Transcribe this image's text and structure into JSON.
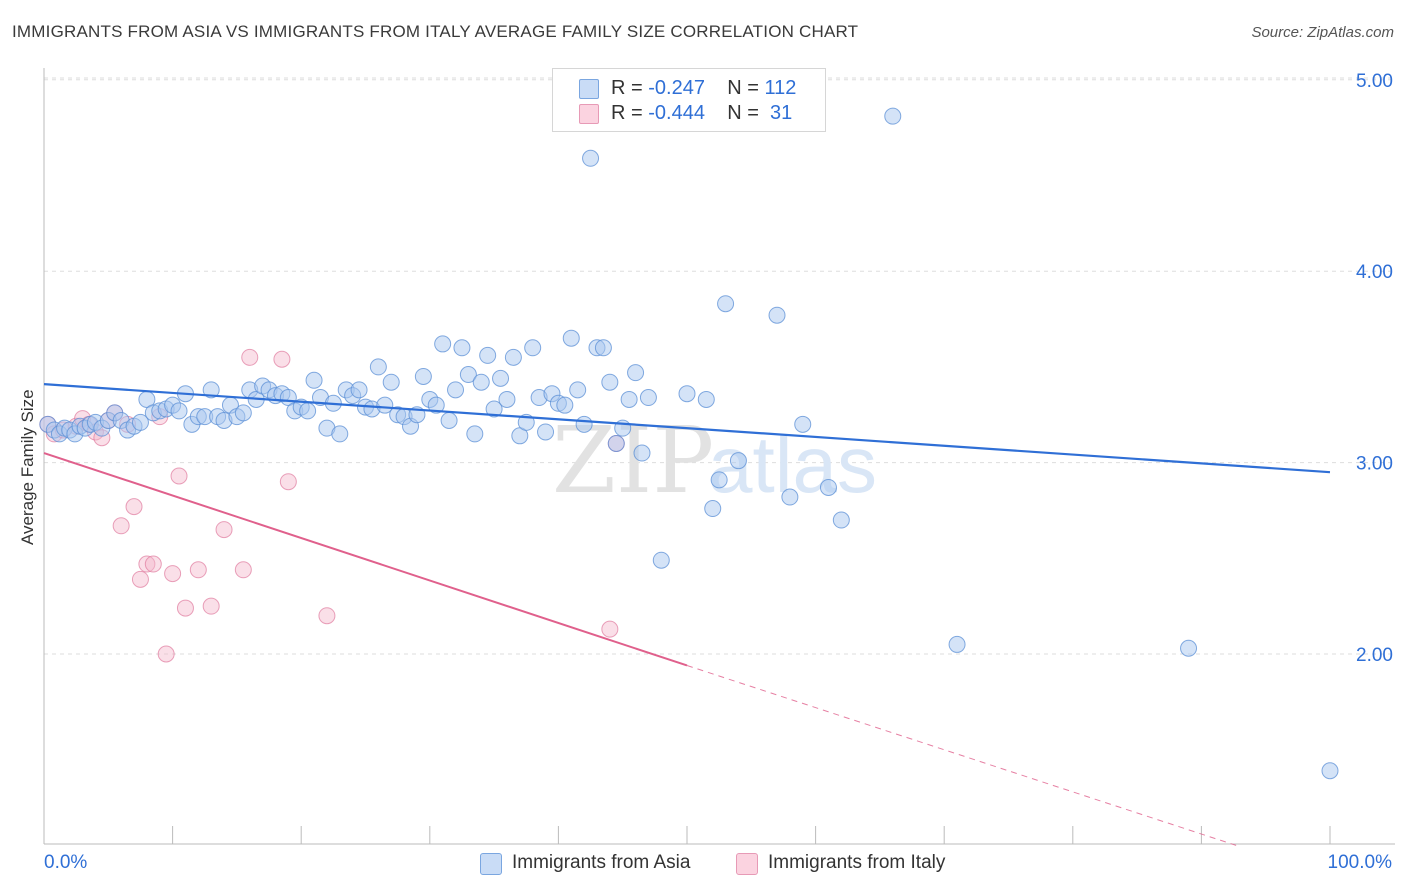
{
  "header": {
    "title": "IMMIGRANTS FROM ASIA VS IMMIGRANTS FROM ITALY AVERAGE FAMILY SIZE CORRELATION CHART",
    "source": "Source: ZipAtlas.com"
  },
  "legend": {
    "rows": [
      {
        "r_label": "R =",
        "r_value": "-0.247",
        "n_label": "N =",
        "n_value": "112",
        "color": "#a9c8f0"
      },
      {
        "r_label": "R =",
        "r_value": "-0.444",
        "n_label": "N =",
        "n_value": " 31",
        "color": "#f5b8cb"
      }
    ]
  },
  "bottom_legend": {
    "asia": "Immigrants from Asia",
    "italy": "Immigrants from Italy"
  },
  "watermark": {
    "zip": "ZIP",
    "atlas": "atlas"
  },
  "colors": {
    "asia_fill": "#a9c8f0",
    "asia_stroke": "#5b8fd6",
    "asia_line": "#2f6fd6",
    "italy_fill": "#f5b8cb",
    "italy_stroke": "#e07a9e",
    "italy_line": "#e0608c",
    "grid": "#dddddd",
    "tick_label": "#2f6fd6"
  },
  "chart_data": {
    "type": "scatter",
    "title": "IMMIGRANTS FROM ASIA VS IMMIGRANTS FROM ITALY AVERAGE FAMILY SIZE CORRELATION CHART",
    "xlabel": "",
    "ylabel": "Average Family Size",
    "x_tick_labels": [
      "0.0%",
      "100.0%"
    ],
    "y_tick_labels": [
      "5.00",
      "4.00",
      "3.00",
      "2.00"
    ],
    "y_ticks": [
      5.0,
      4.0,
      3.0,
      2.0
    ],
    "xlim": [
      0,
      105
    ],
    "ylim": [
      1.1,
      5.1
    ],
    "grid": true,
    "legend_position": "top-center",
    "series": [
      {
        "name": "Immigrants from Asia",
        "r": -0.247,
        "n": 112,
        "trend": {
          "x": [
            0,
            100
          ],
          "y": [
            3.41,
            2.95
          ]
        },
        "points": [
          [
            0.3,
            3.2
          ],
          [
            0.8,
            3.17
          ],
          [
            1.2,
            3.15
          ],
          [
            1.6,
            3.18
          ],
          [
            2.0,
            3.17
          ],
          [
            2.4,
            3.15
          ],
          [
            2.8,
            3.19
          ],
          [
            3.2,
            3.18
          ],
          [
            3.6,
            3.2
          ],
          [
            4.0,
            3.21
          ],
          [
            4.5,
            3.18
          ],
          [
            5.0,
            3.22
          ],
          [
            5.5,
            3.26
          ],
          [
            6.0,
            3.22
          ],
          [
            6.5,
            3.17
          ],
          [
            7.0,
            3.19
          ],
          [
            7.5,
            3.21
          ],
          [
            8.0,
            3.33
          ],
          [
            8.5,
            3.26
          ],
          [
            9.0,
            3.27
          ],
          [
            9.5,
            3.28
          ],
          [
            10.0,
            3.3
          ],
          [
            10.5,
            3.27
          ],
          [
            11.0,
            3.36
          ],
          [
            11.5,
            3.2
          ],
          [
            12.0,
            3.24
          ],
          [
            12.5,
            3.24
          ],
          [
            13.0,
            3.38
          ],
          [
            13.5,
            3.24
          ],
          [
            14.0,
            3.22
          ],
          [
            14.5,
            3.3
          ],
          [
            15.0,
            3.24
          ],
          [
            15.5,
            3.26
          ],
          [
            16.0,
            3.38
          ],
          [
            16.5,
            3.33
          ],
          [
            17.0,
            3.4
          ],
          [
            17.5,
            3.38
          ],
          [
            18.0,
            3.35
          ],
          [
            18.5,
            3.36
          ],
          [
            19.0,
            3.34
          ],
          [
            19.5,
            3.27
          ],
          [
            20.0,
            3.29
          ],
          [
            20.5,
            3.27
          ],
          [
            21.0,
            3.43
          ],
          [
            21.5,
            3.34
          ],
          [
            22.0,
            3.18
          ],
          [
            22.5,
            3.31
          ],
          [
            23.0,
            3.15
          ],
          [
            23.5,
            3.38
          ],
          [
            24.0,
            3.35
          ],
          [
            24.5,
            3.38
          ],
          [
            25.0,
            3.29
          ],
          [
            25.5,
            3.28
          ],
          [
            26.0,
            3.5
          ],
          [
            26.5,
            3.3
          ],
          [
            27.0,
            3.42
          ],
          [
            27.5,
            3.25
          ],
          [
            28.0,
            3.24
          ],
          [
            28.5,
            3.19
          ],
          [
            29.0,
            3.25
          ],
          [
            29.5,
            3.45
          ],
          [
            30.0,
            3.33
          ],
          [
            30.5,
            3.3
          ],
          [
            31.0,
            3.62
          ],
          [
            31.5,
            3.22
          ],
          [
            32.0,
            3.38
          ],
          [
            32.5,
            3.6
          ],
          [
            33.0,
            3.46
          ],
          [
            33.5,
            3.15
          ],
          [
            34.0,
            3.42
          ],
          [
            34.5,
            3.56
          ],
          [
            35.0,
            3.28
          ],
          [
            35.5,
            3.44
          ],
          [
            36.0,
            3.33
          ],
          [
            36.5,
            3.55
          ],
          [
            37.0,
            3.14
          ],
          [
            37.5,
            3.21
          ],
          [
            38.0,
            3.6
          ],
          [
            38.5,
            3.34
          ],
          [
            39.0,
            3.16
          ],
          [
            39.5,
            3.36
          ],
          [
            40.0,
            3.31
          ],
          [
            40.5,
            3.3
          ],
          [
            41.0,
            3.65
          ],
          [
            41.5,
            3.38
          ],
          [
            42.0,
            3.2
          ],
          [
            42.5,
            4.59
          ],
          [
            43.0,
            3.6
          ],
          [
            43.5,
            3.6
          ],
          [
            44.0,
            3.42
          ],
          [
            44.5,
            3.1
          ],
          [
            45.0,
            3.18
          ],
          [
            45.5,
            3.33
          ],
          [
            46.0,
            3.47
          ],
          [
            46.5,
            3.05
          ],
          [
            47.0,
            3.34
          ],
          [
            48.0,
            2.49
          ],
          [
            50.0,
            3.36
          ],
          [
            51.5,
            3.33
          ],
          [
            52.0,
            2.76
          ],
          [
            52.5,
            2.91
          ],
          [
            53.0,
            3.83
          ],
          [
            54.0,
            3.01
          ],
          [
            57.0,
            3.77
          ],
          [
            58.0,
            2.82
          ],
          [
            59.0,
            3.2
          ],
          [
            61.0,
            2.87
          ],
          [
            62.0,
            2.7
          ],
          [
            66.0,
            4.81
          ],
          [
            71.0,
            2.05
          ],
          [
            89.0,
            2.03
          ],
          [
            100.0,
            1.39
          ]
        ]
      },
      {
        "name": "Immigrants from Italy",
        "r": -0.444,
        "n": 31,
        "trend": {
          "x": [
            0,
            50
          ],
          "y": [
            3.05,
            1.94
          ]
        },
        "trend_dashed": {
          "x": [
            50,
            92.7
          ],
          "y": [
            1.94,
            1.0
          ]
        },
        "points": [
          [
            0.3,
            3.2
          ],
          [
            0.8,
            3.15
          ],
          [
            1.5,
            3.17
          ],
          [
            2.5,
            3.19
          ],
          [
            3.0,
            3.23
          ],
          [
            3.5,
            3.2
          ],
          [
            4.0,
            3.16
          ],
          [
            4.5,
            3.13
          ],
          [
            5.0,
            3.22
          ],
          [
            5.5,
            3.26
          ],
          [
            6.0,
            2.67
          ],
          [
            6.5,
            3.2
          ],
          [
            7.0,
            2.77
          ],
          [
            7.5,
            2.39
          ],
          [
            8.0,
            2.47
          ],
          [
            8.5,
            2.47
          ],
          [
            9.0,
            3.24
          ],
          [
            9.5,
            2.0
          ],
          [
            10.0,
            2.42
          ],
          [
            10.5,
            2.93
          ],
          [
            11.0,
            2.24
          ],
          [
            12.0,
            2.44
          ],
          [
            13.0,
            2.25
          ],
          [
            14.0,
            2.65
          ],
          [
            15.5,
            2.44
          ],
          [
            16.0,
            3.55
          ],
          [
            18.5,
            3.54
          ],
          [
            19.0,
            2.9
          ],
          [
            22.0,
            2.2
          ],
          [
            44.0,
            2.13
          ],
          [
            44.5,
            3.1
          ]
        ]
      }
    ]
  }
}
